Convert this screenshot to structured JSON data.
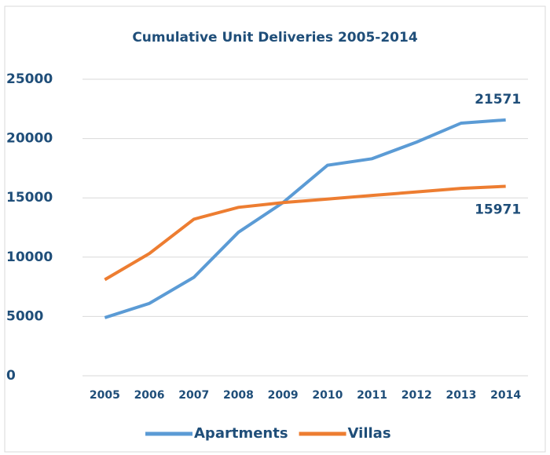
{
  "chart_data": {
    "type": "line",
    "title": "Cumulative Unit Deliveries 2005-2014",
    "categories": [
      "2005",
      "2006",
      "2007",
      "2008",
      "2009",
      "2010",
      "2011",
      "2012",
      "2013",
      "2014"
    ],
    "series": [
      {
        "name": "Apartments",
        "color": "#5b9bd5",
        "values": [
          4900,
          6100,
          8300,
          12100,
          14600,
          17750,
          18300,
          19700,
          21300,
          21571
        ]
      },
      {
        "name": "Villas",
        "color": "#ed7d31",
        "values": [
          8100,
          10300,
          13200,
          14200,
          14600,
          14900,
          15200,
          15500,
          15800,
          15971
        ]
      }
    ],
    "ylim": [
      0,
      25000
    ],
    "yticks": [
      0,
      5000,
      10000,
      15000,
      20000,
      25000
    ],
    "grid": true,
    "legend": "bottom"
  }
}
